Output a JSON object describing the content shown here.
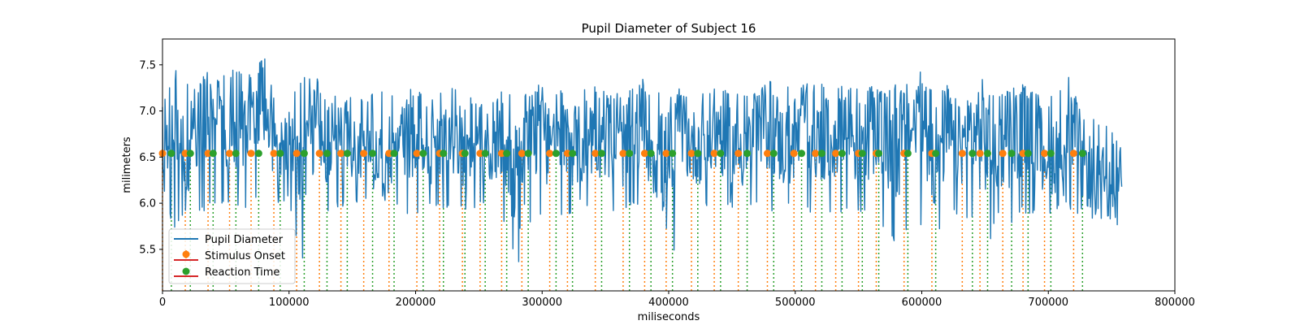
{
  "chart_data": {
    "type": "line",
    "title": "Pupil Diameter of Subject 16",
    "xlabel": "miliseconds",
    "ylabel": "milimeters",
    "xlim": [
      0,
      800000
    ],
    "ylim": [
      5.05,
      7.78
    ],
    "x_ticks": [
      0,
      100000,
      200000,
      300000,
      400000,
      500000,
      600000,
      700000,
      800000
    ],
    "x_tick_labels": [
      "0",
      "100000",
      "200000",
      "300000",
      "400000",
      "500000",
      "600000",
      "700000",
      "800000"
    ],
    "y_ticks": [
      5.5,
      6.0,
      6.5,
      7.0,
      7.5
    ],
    "y_tick_labels": [
      "5.5",
      "6.0",
      "6.5",
      "7.0",
      "7.5"
    ],
    "grid": false,
    "legend_placement": "lower-left",
    "series": [
      {
        "name": "Pupil Diameter",
        "kind": "line",
        "color": "#1f77b4",
        "x": [
          0,
          10000,
          20000,
          30000,
          40000,
          50000,
          60000,
          70000,
          80000,
          90000,
          100000,
          110000,
          120000,
          130000,
          140000,
          150000,
          160000,
          170000,
          180000,
          190000,
          200000,
          210000,
          220000,
          230000,
          240000,
          250000,
          260000,
          270000,
          280000,
          290000,
          300000,
          310000,
          320000,
          330000,
          340000,
          350000,
          360000,
          370000,
          380000,
          390000,
          400000,
          410000,
          420000,
          430000,
          440000,
          450000,
          460000,
          470000,
          480000,
          490000,
          500000,
          510000,
          520000,
          530000,
          540000,
          550000,
          560000,
          570000,
          580000,
          590000,
          600000,
          610000,
          620000,
          630000,
          640000,
          650000,
          660000,
          670000,
          680000,
          690000,
          700000,
          710000,
          720000,
          730000,
          740000,
          750000,
          758000
        ],
        "y": [
          6.55,
          7.1,
          6.6,
          6.9,
          7.0,
          6.7,
          6.9,
          7.0,
          7.1,
          6.6,
          6.8,
          6.5,
          6.9,
          6.6,
          6.7,
          6.7,
          6.5,
          6.6,
          6.6,
          6.7,
          6.8,
          6.5,
          6.7,
          6.8,
          6.6,
          6.7,
          6.6,
          6.8,
          6.2,
          6.7,
          6.8,
          6.5,
          6.7,
          6.6,
          6.8,
          6.7,
          6.6,
          6.7,
          6.9,
          6.5,
          6.3,
          6.8,
          6.6,
          6.7,
          6.8,
          6.6,
          6.6,
          6.7,
          6.9,
          6.6,
          6.7,
          6.8,
          6.6,
          6.7,
          6.9,
          6.6,
          6.8,
          6.7,
          6.6,
          6.8,
          6.9,
          6.5,
          6.8,
          6.6,
          6.8,
          6.7,
          6.6,
          6.7,
          6.8,
          6.6,
          6.6,
          6.5,
          6.7,
          6.4,
          6.2,
          6.3,
          6.4
        ],
        "low": [
          6.0,
          5.7,
          5.9,
          5.9,
          5.95,
          5.95,
          5.9,
          5.95,
          6.05,
          6.0,
          6.0,
          5.35,
          5.9,
          5.9,
          5.95,
          6.0,
          6.0,
          6.0,
          6.05,
          5.85,
          5.85,
          6.0,
          5.95,
          5.95,
          5.9,
          5.95,
          6.0,
          5.8,
          5.3,
          5.75,
          5.9,
          5.8,
          5.85,
          6.0,
          5.85,
          5.95,
          5.8,
          5.95,
          5.9,
          5.75,
          5.1,
          5.85,
          5.9,
          5.95,
          5.9,
          5.95,
          5.9,
          6.0,
          5.85,
          5.95,
          5.9,
          5.9,
          5.85,
          5.85,
          5.9,
          5.85,
          5.85,
          5.7,
          5.55,
          5.75,
          5.75,
          5.55,
          5.8,
          5.9,
          5.8,
          5.4,
          5.85,
          5.7,
          5.9,
          5.85,
          5.8,
          6.0,
          5.9,
          5.85,
          5.75,
          5.8,
          5.72
        ],
        "high": [
          7.45,
          7.45,
          7.3,
          7.2,
          7.3,
          7.4,
          7.5,
          7.3,
          7.52,
          7.2,
          7.15,
          7.4,
          7.4,
          7.25,
          7.2,
          7.2,
          7.1,
          7.25,
          7.2,
          7.25,
          7.25,
          7.1,
          7.25,
          7.3,
          7.2,
          7.1,
          7.1,
          7.3,
          7.1,
          7.25,
          7.3,
          7.2,
          7.25,
          7.25,
          7.3,
          7.2,
          7.2,
          7.25,
          7.3,
          7.2,
          7.2,
          7.25,
          7.1,
          7.25,
          7.3,
          7.25,
          7.2,
          7.2,
          7.4,
          7.25,
          7.3,
          7.3,
          7.3,
          7.2,
          7.3,
          7.25,
          7.3,
          7.2,
          7.3,
          7.25,
          7.3,
          7.25,
          7.3,
          7.2,
          7.35,
          7.3,
          7.2,
          7.25,
          7.3,
          7.2,
          7.2,
          7.3,
          7.42,
          7.1,
          6.9,
          6.85,
          6.6
        ]
      },
      {
        "name": "Stimulus Onset",
        "kind": "stem",
        "color": "#ff7f0e",
        "baseline_color": "#d62728",
        "y": 6.54,
        "x": [
          0,
          18000,
          36000,
          53000,
          70000,
          88000,
          106000,
          124000,
          141000,
          159000,
          179000,
          201000,
          219000,
          237000,
          251000,
          268000,
          284000,
          306000,
          320000,
          342000,
          364000,
          381000,
          398000,
          418000,
          436000,
          455000,
          478000,
          499000,
          516000,
          532000,
          550000,
          564000,
          586000,
          608000,
          632000,
          646000,
          664000,
          680000,
          697000,
          720000
        ]
      },
      {
        "name": "Reaction Time",
        "kind": "stem",
        "color": "#2ca02c",
        "baseline_color": "#d62728",
        "y": 6.54,
        "x": [
          7000,
          22000,
          40000,
          58000,
          76000,
          93000,
          112000,
          130000,
          146000,
          166000,
          183000,
          206000,
          222000,
          239000,
          255000,
          272000,
          289000,
          311000,
          324000,
          347000,
          369000,
          386000,
          403000,
          423000,
          441000,
          462000,
          483000,
          505000,
          521000,
          537000,
          553000,
          566000,
          589000,
          611000,
          640000,
          652000,
          671000,
          684000,
          702000,
          727000
        ]
      }
    ]
  }
}
